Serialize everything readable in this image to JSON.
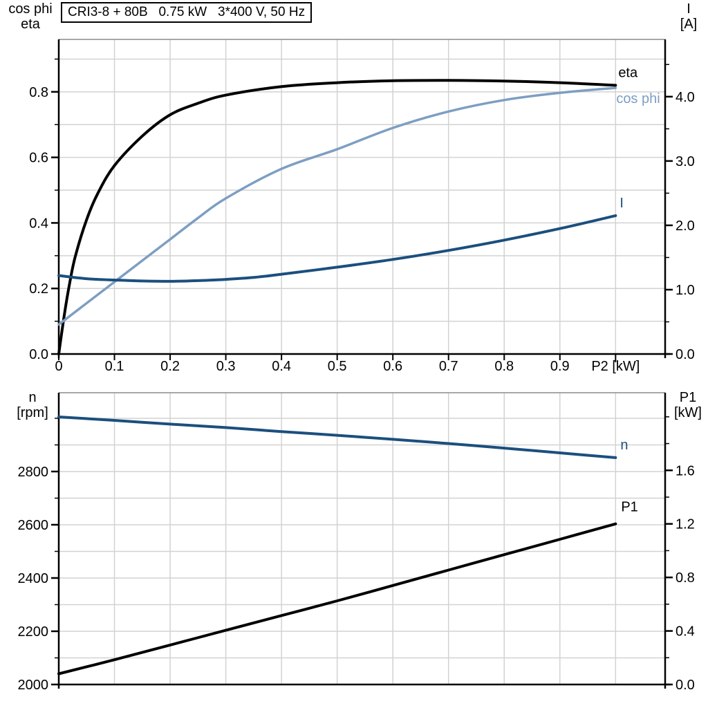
{
  "header": {
    "title": "CRI3-8 + 80B   0.75 kW   3*400 V, 50 Hz"
  },
  "colors": {
    "black_curve": "#000000",
    "light_blue_curve": "#7d9ec2",
    "dark_blue_curve": "#1b4f7e",
    "grid": "#d2d2d2",
    "frame": "#8a8a8a",
    "axis": "#000000"
  },
  "chart_data": [
    {
      "type": "line",
      "title": "Efficiency, power factor and current vs shaft power",
      "xlabel": "P2 [kW]",
      "xlabel_at": 1.0,
      "xlim": [
        0,
        1.089
      ],
      "x_tick_values": [
        0,
        0.1,
        0.2,
        0.3,
        0.4,
        0.5,
        0.6,
        0.7,
        0.8,
        0.9
      ],
      "x_tick_labels": [
        "0",
        "0.1",
        "0.2",
        "0.3",
        "0.4",
        "0.5",
        "0.6",
        "0.7",
        "0.8",
        "0.9"
      ],
      "x_grid_step": 0.1,
      "grid_on": true,
      "left_axis": {
        "label_line1": "cos phi",
        "label_line2": "eta",
        "lim": [
          0,
          0.96
        ],
        "tick_values": [
          0,
          0.2,
          0.4,
          0.6,
          0.8
        ],
        "tick_labels": [
          "0.0",
          "0.2",
          "0.4",
          "0.6",
          "0.8"
        ],
        "minor_step": 0.1,
        "grid_step": 0.1
      },
      "right_axis": {
        "label_line1": "I",
        "label_line2": "[A]",
        "lim": [
          0,
          4.89
        ],
        "tick_values": [
          0,
          1,
          2,
          3,
          4
        ],
        "tick_labels": [
          "0.0",
          "1.0",
          "2.0",
          "3.0",
          "4.0"
        ],
        "minor_step": 0.5
      },
      "series": [
        {
          "name": "eta",
          "label": "eta",
          "axis": "left",
          "color": "#000000",
          "width": 4,
          "label_dx": 4,
          "label_dy": -12,
          "points": [
            [
              0,
              0
            ],
            [
              0.01,
              0.12
            ],
            [
              0.02,
              0.22
            ],
            [
              0.03,
              0.3
            ],
            [
              0.05,
              0.41
            ],
            [
              0.07,
              0.49
            ],
            [
              0.1,
              0.575
            ],
            [
              0.15,
              0.665
            ],
            [
              0.2,
              0.73
            ],
            [
              0.25,
              0.765
            ],
            [
              0.3,
              0.79
            ],
            [
              0.4,
              0.816
            ],
            [
              0.5,
              0.828
            ],
            [
              0.6,
              0.834
            ],
            [
              0.7,
              0.835
            ],
            [
              0.8,
              0.833
            ],
            [
              0.9,
              0.828
            ],
            [
              1.0,
              0.82
            ]
          ]
        },
        {
          "name": "cos_phi",
          "label": "cos phi",
          "axis": "left",
          "color": "#7d9ec2",
          "width": 3.5,
          "label_dx": 1,
          "label_dy": 22,
          "points": [
            [
              0,
              0.09
            ],
            [
              0.05,
              0.155
            ],
            [
              0.1,
              0.22
            ],
            [
              0.15,
              0.285
            ],
            [
              0.2,
              0.35
            ],
            [
              0.25,
              0.415
            ],
            [
              0.3,
              0.475
            ],
            [
              0.4,
              0.565
            ],
            [
              0.5,
              0.625
            ],
            [
              0.6,
              0.69
            ],
            [
              0.7,
              0.74
            ],
            [
              0.8,
              0.775
            ],
            [
              0.9,
              0.797
            ],
            [
              1.0,
              0.812
            ]
          ]
        },
        {
          "name": "I",
          "label": "I",
          "axis": "right",
          "color": "#1b4f7e",
          "width": 4,
          "label_dx": 6,
          "label_dy": -12,
          "points": [
            [
              0,
              1.22
            ],
            [
              0.05,
              1.17
            ],
            [
              0.1,
              1.15
            ],
            [
              0.15,
              1.135
            ],
            [
              0.2,
              1.13
            ],
            [
              0.25,
              1.14
            ],
            [
              0.3,
              1.16
            ],
            [
              0.35,
              1.19
            ],
            [
              0.4,
              1.24
            ],
            [
              0.5,
              1.35
            ],
            [
              0.6,
              1.47
            ],
            [
              0.7,
              1.61
            ],
            [
              0.8,
              1.77
            ],
            [
              0.9,
              1.95
            ],
            [
              1.0,
              2.15
            ]
          ]
        }
      ]
    },
    {
      "type": "line",
      "title": "Speed and input power vs shaft power",
      "xlabel": null,
      "xlim": [
        0,
        1.089
      ],
      "x_tick_values": [],
      "x_tick_labels": [],
      "x_grid_step": 0.1,
      "grid_on": true,
      "left_axis": {
        "label_line1": "n",
        "label_line2": "[rpm]",
        "lim": [
          2000,
          3096
        ],
        "tick_values": [
          2000,
          2200,
          2400,
          2600,
          2800
        ],
        "tick_labels": [
          "2000",
          "2200",
          "2400",
          "2600",
          "2800"
        ],
        "minor_step": 100,
        "grid_step": 100
      },
      "right_axis": {
        "label_line1": "P1",
        "label_line2": "[kW]",
        "lim": [
          0,
          2.18
        ],
        "tick_values": [
          0,
          0.4,
          0.8,
          1.2,
          1.6
        ],
        "tick_labels": [
          "0.0",
          "0.4",
          "0.8",
          "1.2",
          "1.6"
        ],
        "minor_step": 0.2
      },
      "series": [
        {
          "name": "n",
          "label": "n",
          "axis": "left",
          "color": "#1b4f7e",
          "width": 4,
          "label_dx": 7,
          "label_dy": -12,
          "points": [
            [
              0,
              3005
            ],
            [
              0.1,
              2992
            ],
            [
              0.2,
              2978
            ],
            [
              0.3,
              2965
            ],
            [
              0.4,
              2950
            ],
            [
              0.5,
              2936
            ],
            [
              0.6,
              2921
            ],
            [
              0.7,
              2905
            ],
            [
              0.8,
              2888
            ],
            [
              0.9,
              2870
            ],
            [
              1.0,
              2852
            ]
          ]
        },
        {
          "name": "P1",
          "label": "P1",
          "axis": "right",
          "color": "#000000",
          "width": 4,
          "label_dx": 8,
          "label_dy": -18,
          "points": [
            [
              0,
              0.08
            ],
            [
              0.1,
              0.185
            ],
            [
              0.2,
              0.295
            ],
            [
              0.3,
              0.405
            ],
            [
              0.4,
              0.515
            ],
            [
              0.5,
              0.625
            ],
            [
              0.6,
              0.74
            ],
            [
              0.7,
              0.855
            ],
            [
              0.8,
              0.97
            ],
            [
              0.9,
              1.085
            ],
            [
              1.0,
              1.2
            ]
          ]
        }
      ]
    }
  ]
}
